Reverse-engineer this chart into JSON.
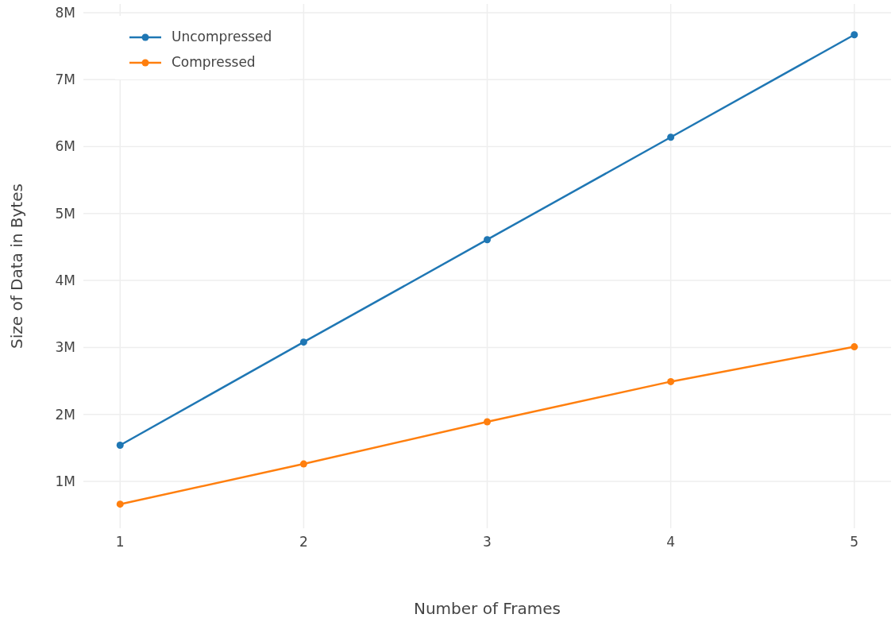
{
  "chart_data": {
    "type": "line",
    "xlabel": "Number of Frames",
    "ylabel": "Size of Data in Bytes",
    "x": [
      1,
      2,
      3,
      4,
      5
    ],
    "series": [
      {
        "name": "Uncompressed",
        "color": "#1f77b4",
        "values": [
          1540000,
          3080000,
          4610000,
          6140000,
          7670000
        ]
      },
      {
        "name": "Compressed",
        "color": "#ff7f0e",
        "values": [
          660000,
          1260000,
          1890000,
          2490000,
          3010000
        ]
      }
    ],
    "xlim": [
      0.8,
      5.2
    ],
    "xticks": [
      1,
      2,
      3,
      4,
      5
    ],
    "ylim": [
      300000,
      8130000
    ],
    "yticks": [
      {
        "value": 1000000,
        "label": "1M"
      },
      {
        "value": 2000000,
        "label": "2M"
      },
      {
        "value": 3000000,
        "label": "3M"
      },
      {
        "value": 4000000,
        "label": "4M"
      },
      {
        "value": 5000000,
        "label": "5M"
      },
      {
        "value": 6000000,
        "label": "6M"
      },
      {
        "value": 7000000,
        "label": "7M"
      },
      {
        "value": 8000000,
        "label": "8M"
      }
    ],
    "grid": true,
    "legend": "top left",
    "marker": "circle",
    "line_style": "solid"
  }
}
